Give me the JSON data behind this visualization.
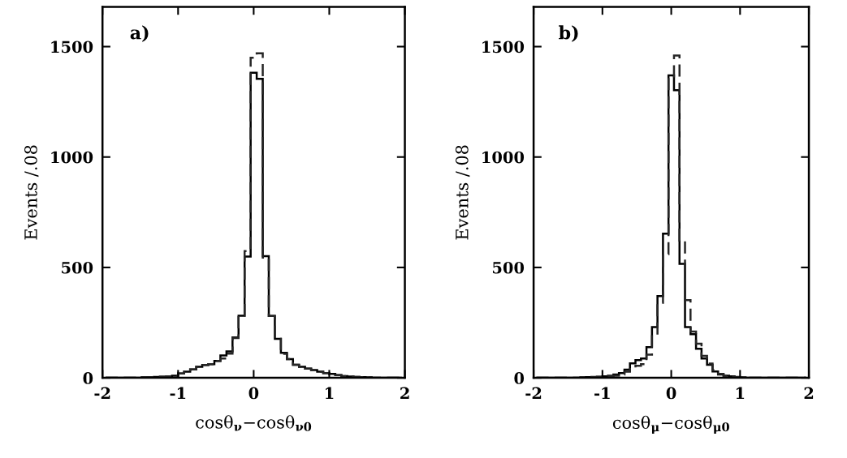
{
  "chart_data": [
    {
      "type": "histogram",
      "xlabel": "cosθ$_{ν}$−cosθ$_{ν0}$",
      "ylabel": "Events /.08",
      "annotations": [
        "a)"
      ],
      "bins": [
        -1.96,
        -1.88,
        -1.8,
        -1.72,
        -1.64,
        -1.56,
        -1.48,
        -1.4,
        -1.32,
        -1.24,
        -1.16,
        -1.08,
        -1,
        -0.92,
        -0.84,
        -0.76,
        -0.68,
        -0.6,
        -0.52,
        -0.44,
        -0.36,
        -0.28,
        -0.2,
        -0.12,
        -0.04,
        0.04,
        0.12,
        0.2,
        0.28,
        0.36,
        0.44,
        0.52,
        0.6,
        0.68,
        0.76,
        0.84,
        0.92,
        1,
        1.08,
        1.16,
        1.24,
        1.32,
        1.4,
        1.48,
        1.56,
        1.64,
        1.72,
        1.8,
        1.88,
        1.96
      ],
      "series": [
        {
          "color": "#000000",
          "line_style": "solid",
          "values": [
            0,
            0,
            0,
            0,
            0,
            0,
            2,
            3,
            4,
            5,
            6,
            10,
            20,
            28,
            38,
            50,
            58,
            62,
            77,
            101,
            120,
            183,
            281,
            549,
            1382,
            1354,
            551,
            280,
            177,
            113,
            85,
            59,
            50,
            42,
            35,
            28,
            22,
            18,
            12,
            8,
            6,
            4,
            3,
            2,
            0,
            0,
            0,
            0,
            0
          ]
        },
        {
          "color": "#262626",
          "line_style": "dashed",
          "values": [
            0,
            0,
            0,
            0,
            0,
            0,
            2,
            3,
            4,
            5,
            6,
            10,
            20,
            28,
            38,
            50,
            58,
            62,
            77,
            88,
            110,
            180,
            281,
            574,
            1450,
            1470,
            545,
            280,
            177,
            109,
            85,
            59,
            50,
            42,
            35,
            28,
            22,
            18,
            12,
            8,
            6,
            4,
            3,
            2,
            0,
            0,
            0,
            0,
            0
          ]
        }
      ],
      "xlim": [
        -2,
        2
      ],
      "ylim": [
        0,
        1680
      ],
      "xticks": [
        -2,
        -1,
        0,
        1,
        2
      ],
      "yticks": [
        0,
        500,
        1000,
        1500
      ],
      "grid": false
    },
    {
      "type": "histogram",
      "xlabel": "cosθ$_{μ}$−cosθ$_{μ0}$",
      "ylabel": "Events /.08",
      "annotations": [
        "b)"
      ],
      "bins": [
        -1.96,
        -1.88,
        -1.8,
        -1.72,
        -1.64,
        -1.56,
        -1.48,
        -1.4,
        -1.32,
        -1.24,
        -1.16,
        -1.08,
        -1,
        -0.92,
        -0.84,
        -0.76,
        -0.68,
        -0.6,
        -0.52,
        -0.44,
        -0.36,
        -0.28,
        -0.2,
        -0.12,
        -0.04,
        0.04,
        0.12,
        0.2,
        0.28,
        0.36,
        0.44,
        0.52,
        0.6,
        0.68,
        0.76,
        0.84,
        0.92,
        1,
        1.08,
        1.16,
        1.24,
        1.32,
        1.4,
        1.48,
        1.56,
        1.64,
        1.72,
        1.8,
        1.88,
        1.96
      ],
      "series": [
        {
          "color": "#000000",
          "line_style": "solid",
          "values": [
            0,
            0,
            0,
            0,
            0,
            0,
            0,
            0,
            2,
            3,
            4,
            5,
            7,
            10,
            15,
            22,
            37,
            66,
            80,
            88,
            139,
            230,
            370,
            653,
            1370,
            1303,
            516,
            230,
            198,
            132,
            88,
            59,
            29,
            15,
            10,
            7,
            4,
            2,
            0,
            0,
            0,
            0,
            0,
            0,
            0,
            0,
            0,
            0,
            0
          ]
        },
        {
          "color": "#262626",
          "line_style": "dashed",
          "values": [
            0,
            0,
            0,
            0,
            0,
            0,
            0,
            0,
            1,
            2,
            3,
            4,
            5,
            7,
            10,
            15,
            28,
            45,
            55,
            62,
            105,
            194,
            340,
            560,
            1360,
            1460,
            622,
            352,
            210,
            155,
            100,
            65,
            35,
            18,
            10,
            5,
            3,
            1,
            0,
            0,
            0,
            0,
            0,
            0,
            0,
            0,
            0,
            0,
            0
          ]
        }
      ],
      "xlim": [
        -2,
        2
      ],
      "ylim": [
        0,
        1680
      ],
      "xticks": [
        -2,
        -1,
        0,
        1,
        2
      ],
      "yticks": [
        0,
        500,
        1000,
        1500
      ],
      "grid": false
    }
  ]
}
